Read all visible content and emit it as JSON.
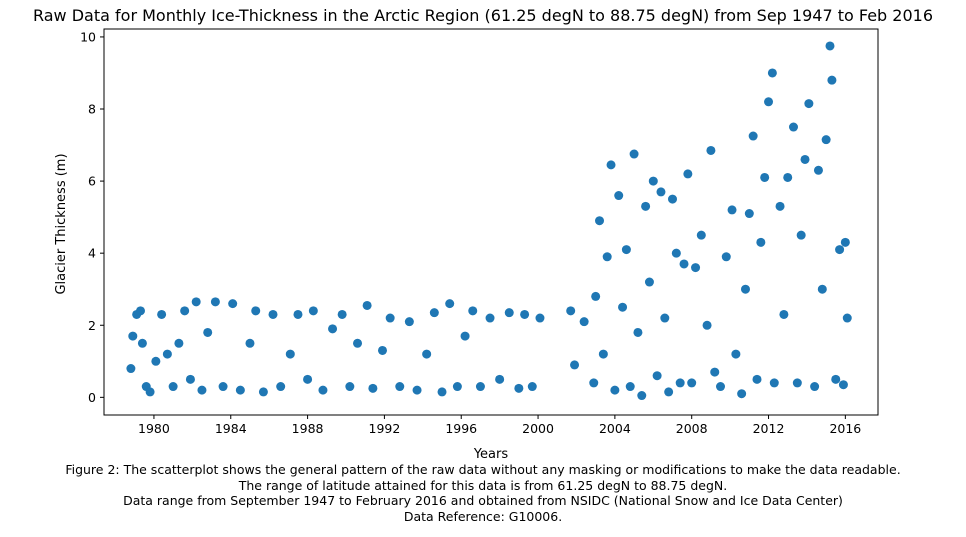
{
  "chart_data": {
    "type": "scatter",
    "title": "Raw Data for Monthly Ice-Thickness in the Arctic Region (61.25 degN to 88.75 degN) from Sep 1947 to Feb 2016",
    "xlabel": "Years",
    "ylabel": "Glacier Thickness (m)",
    "xlim": [
      1977.4,
      2017.7
    ],
    "ylim": [
      -0.49,
      10.22
    ],
    "x_ticks": [
      1980,
      1984,
      1988,
      1992,
      1996,
      2000,
      2004,
      2008,
      2012,
      2016
    ],
    "y_ticks": [
      0,
      2,
      4,
      6,
      8,
      10
    ],
    "grid": false,
    "marker_color": "#1f77b4",
    "series": [
      {
        "points": [
          [
            1978.8,
            0.8
          ],
          [
            1978.9,
            1.7
          ],
          [
            1979.1,
            2.3
          ],
          [
            1979.3,
            2.4
          ],
          [
            1979.4,
            1.5
          ],
          [
            1979.6,
            0.3
          ],
          [
            1979.8,
            0.15
          ],
          [
            1980.1,
            1.0
          ],
          [
            1980.4,
            2.3
          ],
          [
            1980.7,
            1.2
          ],
          [
            1981.0,
            0.3
          ],
          [
            1981.3,
            1.5
          ],
          [
            1981.6,
            2.4
          ],
          [
            1981.9,
            0.5
          ],
          [
            1982.2,
            2.65
          ],
          [
            1982.5,
            0.2
          ],
          [
            1982.8,
            1.8
          ],
          [
            1983.2,
            2.65
          ],
          [
            1983.6,
            0.3
          ],
          [
            1984.1,
            2.6
          ],
          [
            1984.5,
            0.2
          ],
          [
            1985.0,
            1.5
          ],
          [
            1985.3,
            2.4
          ],
          [
            1985.7,
            0.15
          ],
          [
            1986.2,
            2.3
          ],
          [
            1986.6,
            0.3
          ],
          [
            1987.1,
            1.2
          ],
          [
            1987.5,
            2.3
          ],
          [
            1988.0,
            0.5
          ],
          [
            1988.3,
            2.4
          ],
          [
            1988.8,
            0.2
          ],
          [
            1989.3,
            1.9
          ],
          [
            1989.8,
            2.3
          ],
          [
            1990.2,
            0.3
          ],
          [
            1990.6,
            1.5
          ],
          [
            1991.1,
            2.55
          ],
          [
            1991.4,
            0.25
          ],
          [
            1991.9,
            1.3
          ],
          [
            1992.3,
            2.2
          ],
          [
            1992.8,
            0.3
          ],
          [
            1993.3,
            2.1
          ],
          [
            1993.7,
            0.2
          ],
          [
            1994.2,
            1.2
          ],
          [
            1994.6,
            2.35
          ],
          [
            1995.0,
            0.15
          ],
          [
            1995.4,
            2.6
          ],
          [
            1995.8,
            0.3
          ],
          [
            1996.2,
            1.7
          ],
          [
            1996.6,
            2.4
          ],
          [
            1997.0,
            0.3
          ],
          [
            1997.5,
            2.2
          ],
          [
            1998.0,
            0.5
          ],
          [
            1998.5,
            2.35
          ],
          [
            1999.0,
            0.25
          ],
          [
            1999.3,
            2.3
          ],
          [
            1999.7,
            0.3
          ],
          [
            2000.1,
            2.2
          ],
          [
            2001.7,
            2.4
          ],
          [
            2001.9,
            0.9
          ],
          [
            2002.4,
            2.1
          ],
          [
            2002.9,
            0.4
          ],
          [
            2003.0,
            2.8
          ],
          [
            2003.2,
            4.9
          ],
          [
            2003.4,
            1.2
          ],
          [
            2003.6,
            3.9
          ],
          [
            2003.8,
            6.45
          ],
          [
            2004.0,
            0.2
          ],
          [
            2004.2,
            5.6
          ],
          [
            2004.4,
            2.5
          ],
          [
            2004.6,
            4.1
          ],
          [
            2004.8,
            0.3
          ],
          [
            2005.0,
            6.75
          ],
          [
            2005.2,
            1.8
          ],
          [
            2005.4,
            0.05
          ],
          [
            2005.6,
            5.3
          ],
          [
            2005.8,
            3.2
          ],
          [
            2006.0,
            6.0
          ],
          [
            2006.2,
            0.6
          ],
          [
            2006.4,
            5.7
          ],
          [
            2006.6,
            2.2
          ],
          [
            2006.8,
            0.15
          ],
          [
            2007.0,
            5.5
          ],
          [
            2007.2,
            4.0
          ],
          [
            2007.4,
            0.4
          ],
          [
            2007.6,
            3.7
          ],
          [
            2007.8,
            6.2
          ],
          [
            2008.0,
            0.4
          ],
          [
            2008.2,
            3.6
          ],
          [
            2008.5,
            4.5
          ],
          [
            2008.8,
            2.0
          ],
          [
            2009.0,
            6.85
          ],
          [
            2009.2,
            0.7
          ],
          [
            2009.5,
            0.3
          ],
          [
            2009.8,
            3.9
          ],
          [
            2010.1,
            5.2
          ],
          [
            2010.3,
            1.2
          ],
          [
            2010.6,
            0.1
          ],
          [
            2010.8,
            3.0
          ],
          [
            2011.0,
            5.1
          ],
          [
            2011.2,
            7.25
          ],
          [
            2011.4,
            0.5
          ],
          [
            2011.6,
            4.3
          ],
          [
            2011.8,
            6.1
          ],
          [
            2012.0,
            8.2
          ],
          [
            2012.2,
            9.0
          ],
          [
            2012.3,
            0.4
          ],
          [
            2012.6,
            5.3
          ],
          [
            2012.8,
            2.3
          ],
          [
            2013.0,
            6.1
          ],
          [
            2013.3,
            7.5
          ],
          [
            2013.5,
            0.4
          ],
          [
            2013.7,
            4.5
          ],
          [
            2013.9,
            6.6
          ],
          [
            2014.1,
            8.15
          ],
          [
            2014.4,
            0.3
          ],
          [
            2014.6,
            6.3
          ],
          [
            2014.8,
            3.0
          ],
          [
            2015.0,
            7.15
          ],
          [
            2015.2,
            9.75
          ],
          [
            2015.3,
            8.8
          ],
          [
            2015.5,
            0.5
          ],
          [
            2015.7,
            4.1
          ],
          [
            2015.9,
            0.35
          ],
          [
            2016.0,
            4.3
          ],
          [
            2016.1,
            2.2
          ]
        ]
      }
    ]
  }
}
